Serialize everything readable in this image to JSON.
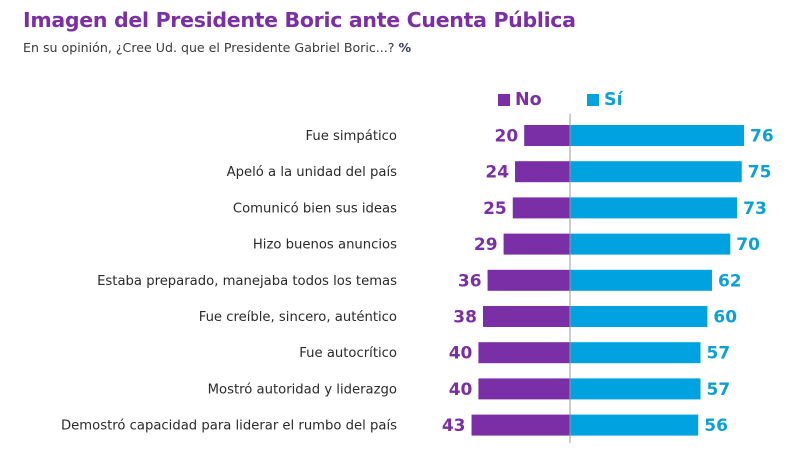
{
  "chart_data": {
    "type": "bar",
    "orientation": "horizontal-diverging",
    "title": "Imagen del Presidente Boric ante Cuenta Pública",
    "subtitle": "En su opinión, ¿Cree Ud. que el Presidente Gabriel Boric...?",
    "unit_label": "%",
    "categories": [
      "Fue simpático",
      "Apeló a la unidad del país",
      "Comunicó bien sus ideas",
      "Hizo buenos anuncios",
      "Estaba preparado, manejaba todos los temas",
      "Fue creíble, sincero, auténtico",
      "Fue autocrítico",
      "Mostró autoridad y liderazgo",
      "Demostró capacidad para liderar el rumbo del país"
    ],
    "series": [
      {
        "name": "No",
        "color": "#7B2FA6",
        "direction": "left",
        "values": [
          20,
          24,
          25,
          29,
          36,
          38,
          40,
          40,
          43
        ]
      },
      {
        "name": "Sí",
        "color": "#00A2DF",
        "direction": "right",
        "values": [
          76,
          75,
          73,
          70,
          62,
          60,
          57,
          57,
          56
        ]
      }
    ],
    "legend_position": "top-right",
    "grid": false,
    "xlim": [
      0,
      100
    ]
  }
}
